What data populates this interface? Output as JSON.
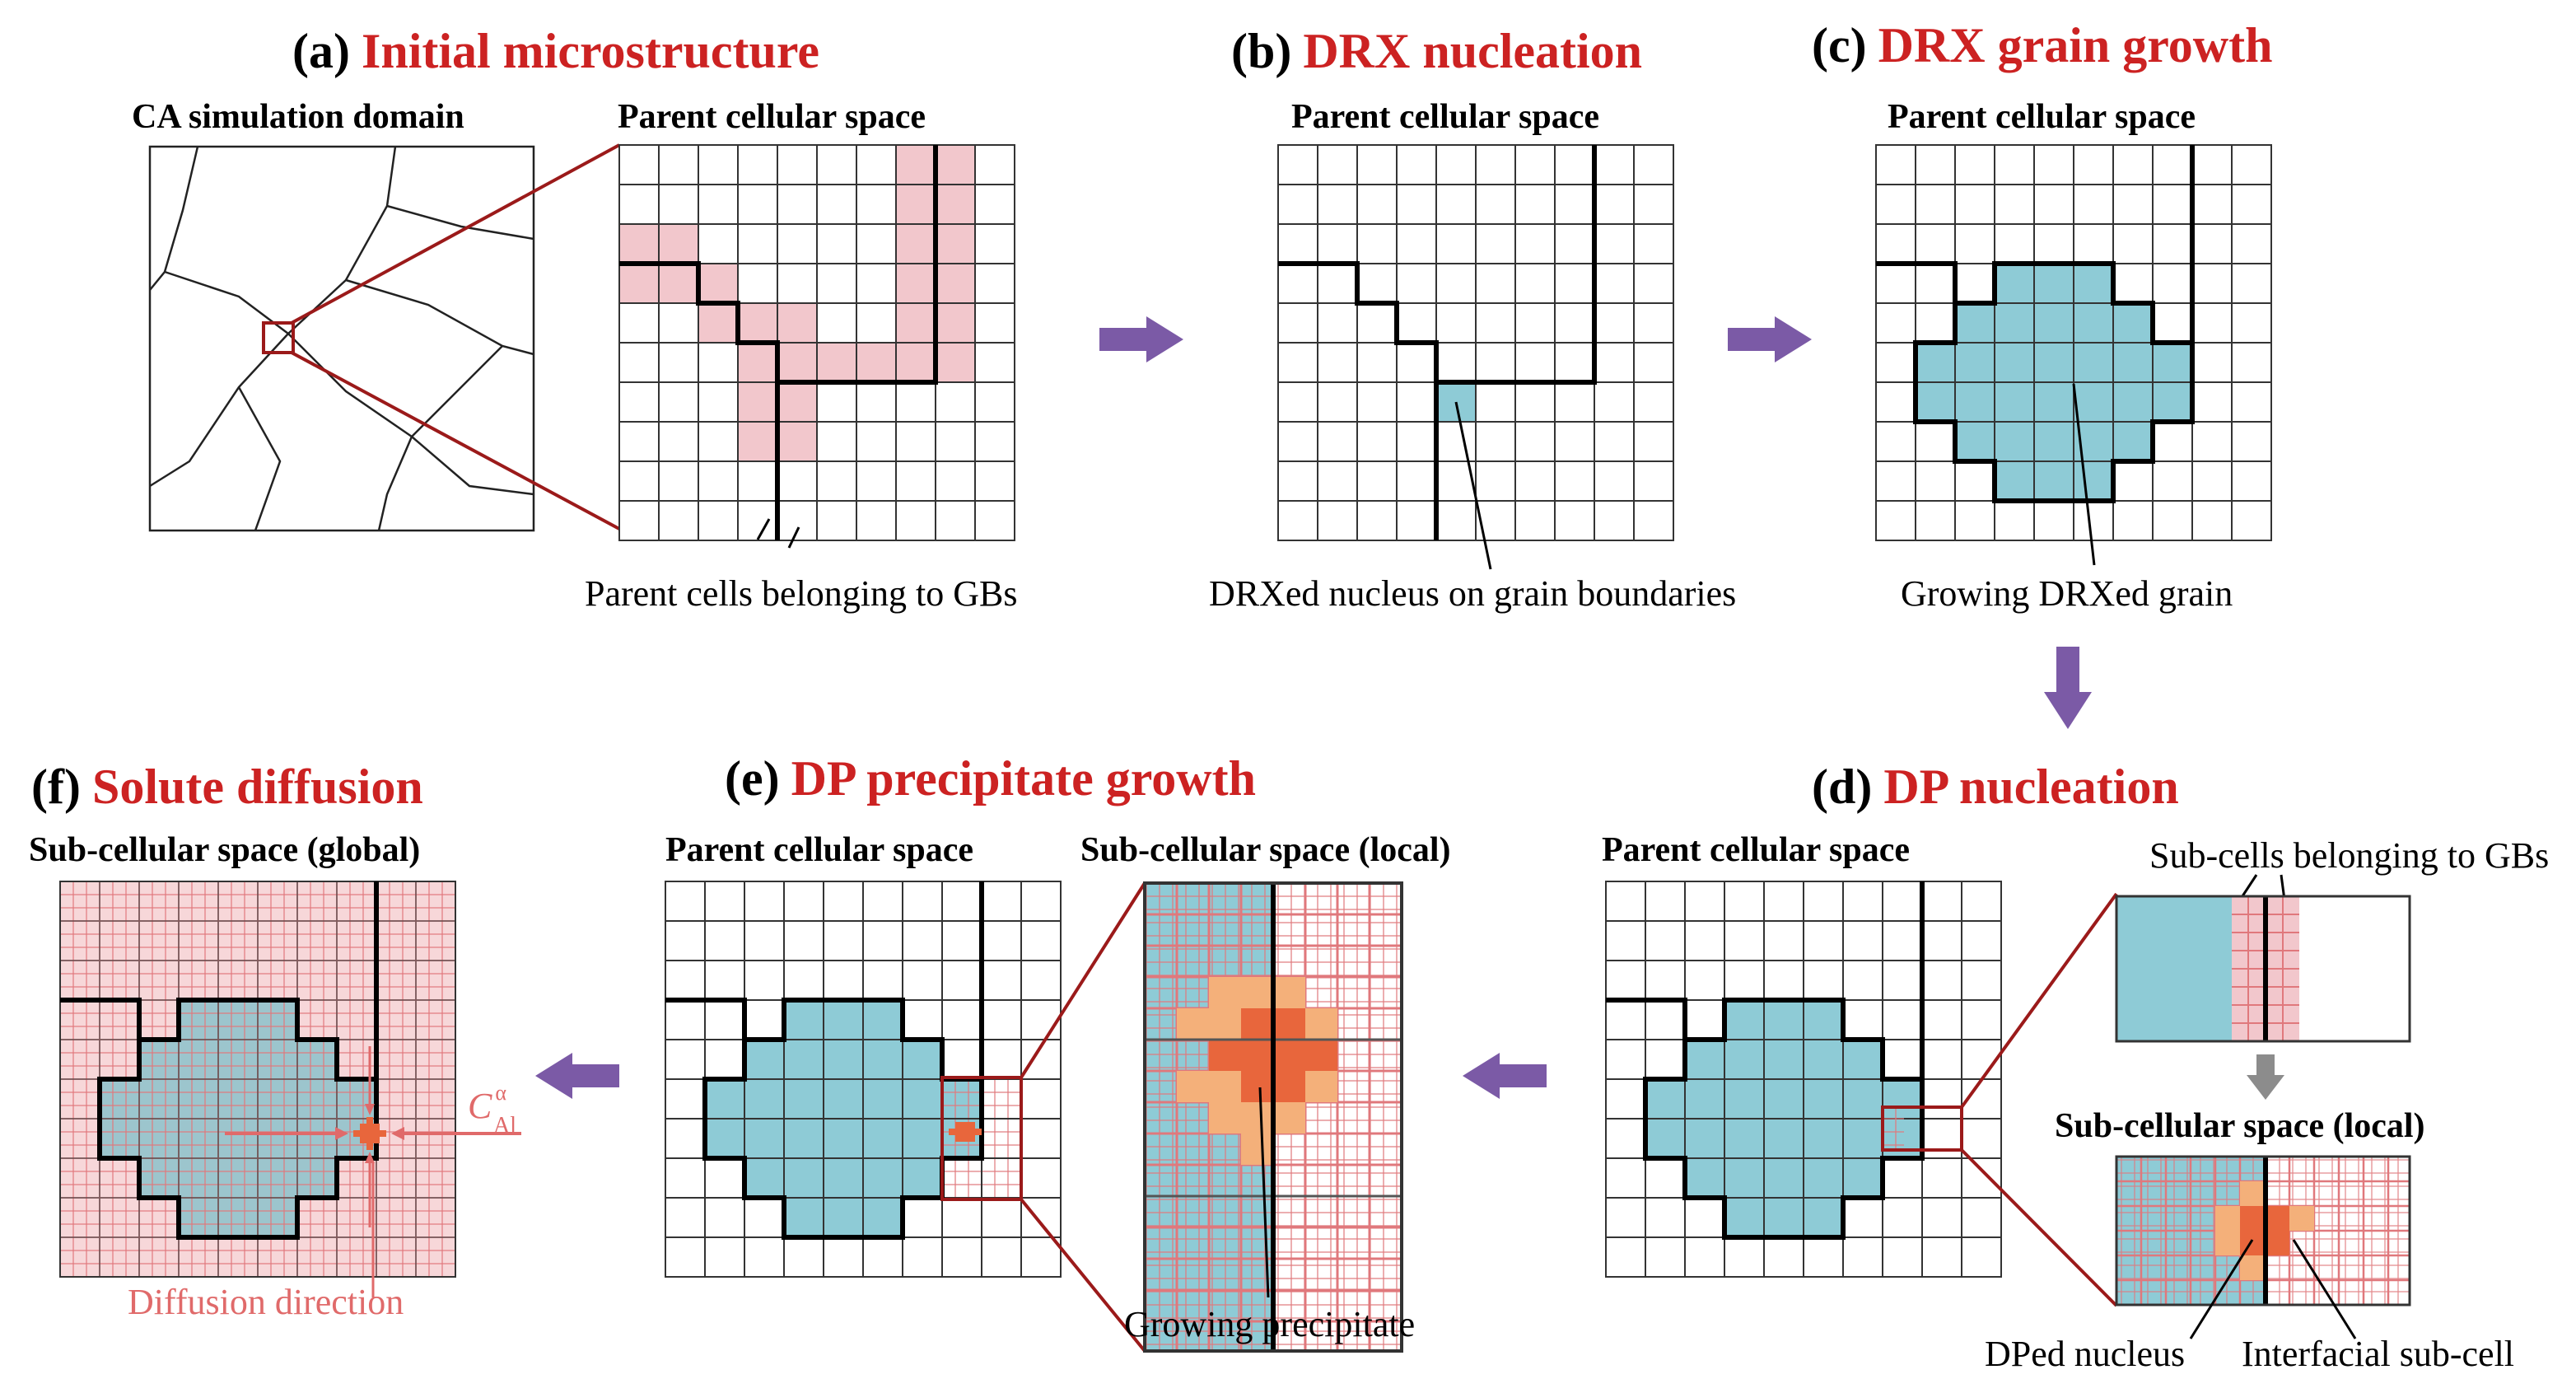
{
  "colors": {
    "title_red": "#cc2222",
    "grain_blue": "#8ecbd6",
    "gb_pink": "#f2c7cc",
    "subgrid_red": "#e0787c",
    "dark_red_line": "#9b1a1a",
    "precip_orange": "#e8663c",
    "precip_light": "#f4b07a",
    "arrow_purple": "#7b5aa6",
    "arrow_gray": "#8c8c8c",
    "diffusion_label": "#e06a6a"
  },
  "panels": {
    "a": {
      "letter": "(a)",
      "title": "Initial microstructure",
      "sub1": "CA simulation domain",
      "sub2": "Parent cellular space",
      "caption": "Parent cells belonging to GBs"
    },
    "b": {
      "letter": "(b)",
      "title": "DRX nucleation",
      "sub": "Parent cellular space",
      "caption": "DRXed nucleus on grain boundaries"
    },
    "c": {
      "letter": "(c)",
      "title": "DRX grain growth",
      "sub": "Parent cellular space",
      "caption": "Growing DRXed grain"
    },
    "d": {
      "letter": "(d)",
      "title": "DP nucleation",
      "sub1": "Parent cellular space",
      "sub_top": "Sub-cells belonging to GBs",
      "sub2": "Sub-cellular space (local)",
      "cap1": "DPed nucleus",
      "cap2": "Interfacial sub-cell"
    },
    "e": {
      "letter": "(e)",
      "title": "DP precipitate growth",
      "sub1": "Parent cellular space",
      "sub2": "Sub-cellular space (local)",
      "caption": "Growing precipitate"
    },
    "f": {
      "letter": "(f)",
      "title": "Solute diffusion",
      "sub": "Sub-cellular space (global)",
      "caption": "Diffusion direction",
      "symbol": "C",
      "sup": "α",
      "subscript": "Al"
    }
  }
}
